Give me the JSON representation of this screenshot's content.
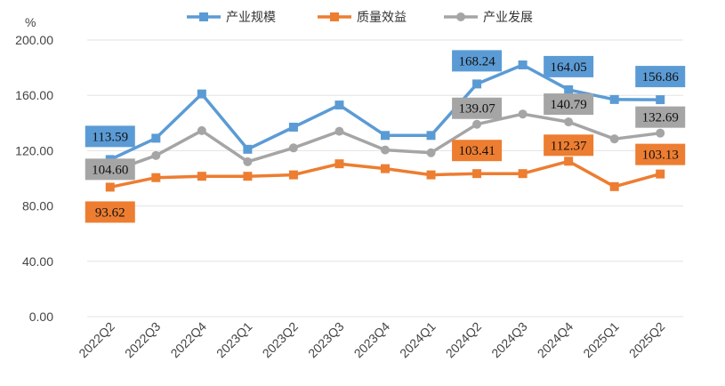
{
  "chart_data": {
    "type": "line",
    "title": "",
    "xlabel": "",
    "ylabel": "",
    "unit_label": "%",
    "ylim": [
      0,
      200
    ],
    "yticks": [
      "0.00",
      "40.00",
      "80.00",
      "120.00",
      "160.00",
      "200.00"
    ],
    "grid": true,
    "legend_position": "top",
    "categories": [
      "2022Q2",
      "2022Q3",
      "2022Q4",
      "2023Q1",
      "2023Q2",
      "2023Q3",
      "2023Q4",
      "2024Q1",
      "2024Q2",
      "2024Q3",
      "2024Q4",
      "2025Q1",
      "2025Q2"
    ],
    "series": [
      {
        "name": "产业规模",
        "color": "#5B9BD5",
        "marker": "square",
        "values": [
          113.59,
          129,
          161,
          121,
          137,
          153,
          131,
          131,
          168.24,
          182,
          164.05,
          157,
          156.86
        ],
        "labels": [
          {
            "index": 0,
            "text": "113.59"
          },
          {
            "index": 8,
            "text": "168.24"
          },
          {
            "index": 10,
            "text": "164.05"
          },
          {
            "index": 12,
            "text": "156.86"
          }
        ]
      },
      {
        "name": "质量效益",
        "color": "#ED7D31",
        "marker": "square",
        "values": [
          93.62,
          100.5,
          101.5,
          101.5,
          102.5,
          110.5,
          107,
          102.5,
          103.41,
          103.41,
          112.37,
          94,
          103.13
        ],
        "labels": [
          {
            "index": 0,
            "text": "93.62"
          },
          {
            "index": 8,
            "text": "103.41"
          },
          {
            "index": 10,
            "text": "112.37"
          },
          {
            "index": 12,
            "text": "103.13"
          }
        ]
      },
      {
        "name": "产业发展",
        "color": "#A5A5A5",
        "marker": "circle",
        "values": [
          104.6,
          116.5,
          134.5,
          112,
          122,
          134,
          120.5,
          118.5,
          139.07,
          146.5,
          140.79,
          128.5,
          132.69
        ],
        "labels": [
          {
            "index": 0,
            "text": "104.60"
          },
          {
            "index": 8,
            "text": "139.07"
          },
          {
            "index": 10,
            "text": "140.79"
          },
          {
            "index": 12,
            "text": "132.69"
          }
        ]
      }
    ]
  }
}
